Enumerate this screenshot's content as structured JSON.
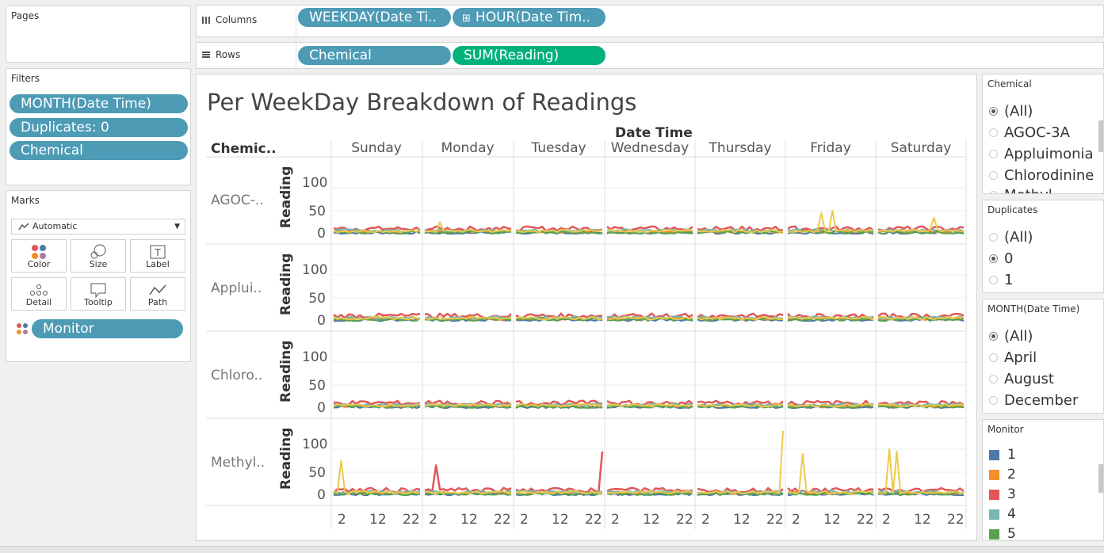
{
  "pages": {
    "title": "Pages"
  },
  "filters": {
    "title": "Filters",
    "items": [
      "MONTH(Date Time)",
      "Duplicates: 0",
      "Chemical"
    ]
  },
  "marks": {
    "title": "Marks",
    "type": "Automatic",
    "buttons": [
      "Color",
      "Size",
      "Label",
      "Detail",
      "Tooltip",
      "Path"
    ],
    "pill": "Monitor"
  },
  "columns": {
    "label": "Columns",
    "pills": [
      "WEEKDAY(Date Ti..",
      "HOUR(Date Tim.."
    ]
  },
  "rows": {
    "label": "Rows",
    "pills": [
      "Chemical",
      "SUM(Reading)"
    ]
  },
  "chart_data": {
    "type": "line",
    "title": "Per WeekDay Breakdown of Readings",
    "column_header": "Date Time",
    "row_header": "Chemic..",
    "days": [
      "Sunday",
      "Monday",
      "Tuesday",
      "Wednesday",
      "Thursday",
      "Friday",
      "Saturday"
    ],
    "chemicals": [
      "AGOC-..",
      "Appluі..",
      "Chloro..",
      "Methyl.."
    ],
    "ylabel": "Reading",
    "yticks": [
      "100",
      "50",
      "0"
    ],
    "ylim": [
      0,
      140
    ],
    "xticks": [
      "2",
      "12",
      "22"
    ],
    "series_colors": {
      "1": "#4e79a7",
      "2": "#f28e2b",
      "3": "#e15759",
      "4": "#76b7b2",
      "5": "#59a14f",
      "6": "#edc948",
      "7": "#b07aa1",
      "8": "#ff9da7",
      "9": "#9c755f"
    },
    "peaks": {
      "AGOC-..": [
        {
          "day": "Monday",
          "hour": 4,
          "value": 25,
          "series": "6"
        },
        {
          "day": "Friday",
          "hour": 9,
          "value": 45,
          "series": "6"
        },
        {
          "day": "Friday",
          "hour": 12,
          "value": 50,
          "series": "6"
        },
        {
          "day": "Saturday",
          "hour": 15,
          "value": 35,
          "series": "6"
        }
      ],
      "Methyl..": [
        {
          "day": "Sunday",
          "hour": 2,
          "value": 75,
          "series": "6"
        },
        {
          "day": "Monday",
          "hour": 3,
          "value": 65,
          "series": "3"
        },
        {
          "day": "Tuesday",
          "hour": 23,
          "value": 95,
          "series": "3"
        },
        {
          "day": "Thursday",
          "hour": 23,
          "value": 140,
          "series": "6"
        },
        {
          "day": "Friday",
          "hour": 4,
          "value": 90,
          "series": "6"
        },
        {
          "day": "Saturday",
          "hour": 3,
          "value": 100,
          "series": "6"
        },
        {
          "day": "Saturday",
          "hour": 5,
          "value": 95,
          "series": "6"
        }
      ]
    }
  },
  "filter_chemical": {
    "title": "Chemical",
    "options": [
      "(All)",
      "AGOC-3A",
      "Appluimonia",
      "Chlorodinine",
      "Methyl.."
    ],
    "selected": 0
  },
  "filter_duplicates": {
    "title": "Duplicates",
    "options": [
      "(All)",
      "0",
      "1"
    ],
    "selected": 1
  },
  "filter_month": {
    "title": "MONTH(Date Time)",
    "options": [
      "(All)",
      "April",
      "August",
      "December"
    ],
    "selected": 0
  },
  "legend": {
    "title": "Monitor",
    "items": [
      {
        "label": "1",
        "color": "#4e79a7"
      },
      {
        "label": "2",
        "color": "#f28e2b"
      },
      {
        "label": "3",
        "color": "#e15759"
      },
      {
        "label": "4",
        "color": "#76b7b2"
      },
      {
        "label": "5",
        "color": "#59a14f"
      }
    ]
  }
}
